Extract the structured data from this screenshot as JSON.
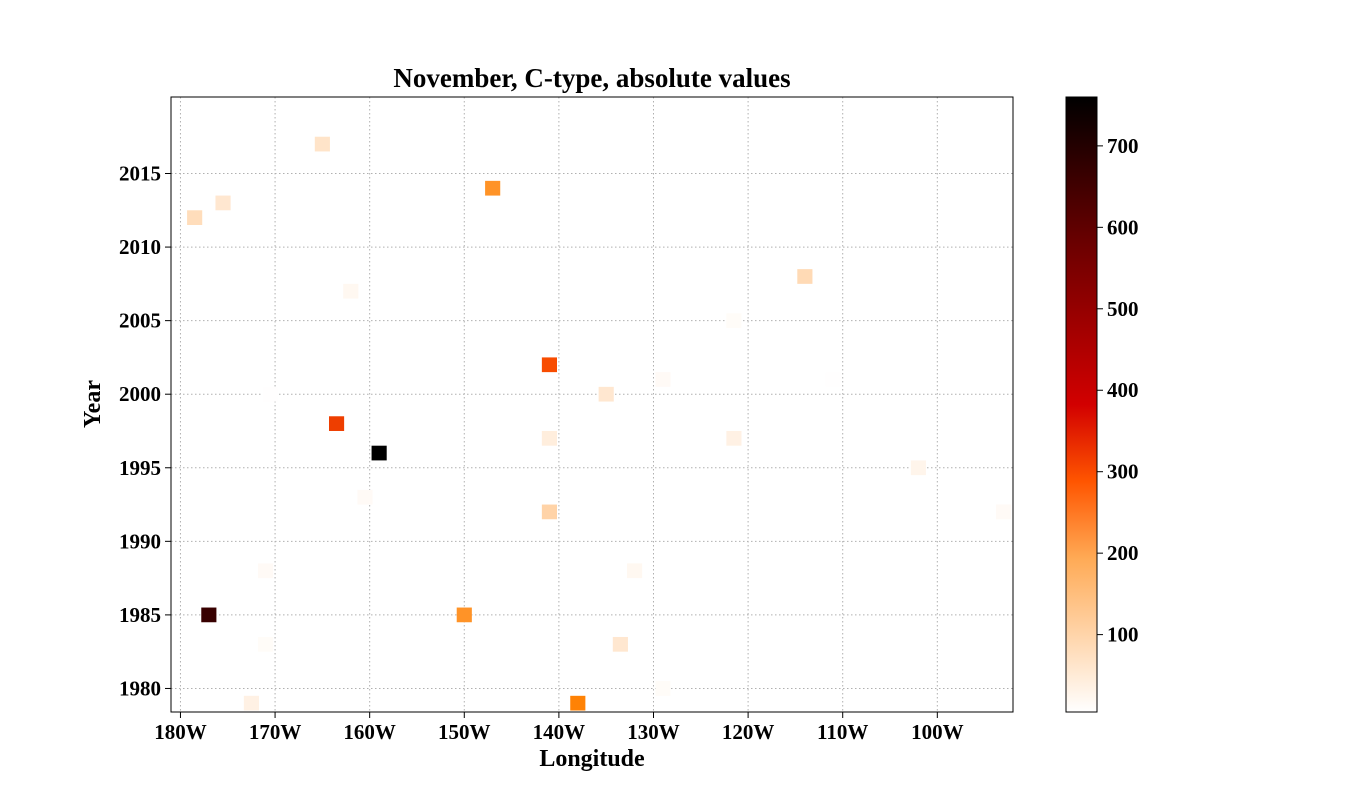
{
  "chart_data": {
    "type": "heatmap",
    "title": "November, C-type, absolute values",
    "xlabel": "Longitude",
    "ylabel": "Year",
    "xlim": [
      -181,
      -92
    ],
    "ylim": [
      1978.4,
      2020.2
    ],
    "xticks": [
      -180,
      -170,
      -160,
      -150,
      -140,
      -130,
      -120,
      -110,
      -100
    ],
    "xtick_labels": [
      "180W",
      "170W",
      "160W",
      "150W",
      "140W",
      "130W",
      "120W",
      "110W",
      "100W"
    ],
    "yticks": [
      1980,
      1985,
      1990,
      1995,
      2000,
      2005,
      2010,
      2015
    ],
    "ytick_labels": [
      "1980",
      "1985",
      "1990",
      "1995",
      "2000",
      "2005",
      "2010",
      "2015"
    ],
    "grid": true,
    "colormap": "gist_heat_r",
    "cell_width_deg": 1.6,
    "cell_height_years": 1,
    "colorbar": {
      "range": [
        5,
        760
      ],
      "ticks": [
        100,
        200,
        300,
        400,
        500,
        600,
        700
      ],
      "tick_labels": [
        "100",
        "200",
        "300",
        "400",
        "500",
        "600",
        "700"
      ]
    },
    "points": [
      {
        "lon": -165.0,
        "year": 2017,
        "value": 45
      },
      {
        "lon": -147.0,
        "year": 2014,
        "value": 165
      },
      {
        "lon": -175.5,
        "year": 2013,
        "value": 40
      },
      {
        "lon": -178.5,
        "year": 2012,
        "value": 55
      },
      {
        "lon": -114.0,
        "year": 2008,
        "value": 60
      },
      {
        "lon": -162.0,
        "year": 2007,
        "value": 15
      },
      {
        "lon": -121.5,
        "year": 2005,
        "value": 10
      },
      {
        "lon": -141.0,
        "year": 2002,
        "value": 270
      },
      {
        "lon": -129.0,
        "year": 2001,
        "value": 12
      },
      {
        "lon": -111.0,
        "year": 2001,
        "value": 6
      },
      {
        "lon": -135.0,
        "year": 2000,
        "value": 40
      },
      {
        "lon": -170.5,
        "year": 2000,
        "value": 6
      },
      {
        "lon": -163.5,
        "year": 1998,
        "value": 290
      },
      {
        "lon": -141.0,
        "year": 1997,
        "value": 30
      },
      {
        "lon": -121.5,
        "year": 1997,
        "value": 25
      },
      {
        "lon": -159.0,
        "year": 1996,
        "value": 760
      },
      {
        "lon": -102.0,
        "year": 1995,
        "value": 20
      },
      {
        "lon": -160.5,
        "year": 1993,
        "value": 12
      },
      {
        "lon": -141.0,
        "year": 1992,
        "value": 70
      },
      {
        "lon": -93.0,
        "year": 1992,
        "value": 12
      },
      {
        "lon": -171.0,
        "year": 1988,
        "value": 12
      },
      {
        "lon": -132.0,
        "year": 1988,
        "value": 15
      },
      {
        "lon": -177.0,
        "year": 1985,
        "value": 650
      },
      {
        "lon": -150.0,
        "year": 1985,
        "value": 165
      },
      {
        "lon": -171.0,
        "year": 1983,
        "value": 10
      },
      {
        "lon": -133.5,
        "year": 1983,
        "value": 40
      },
      {
        "lon": -129.0,
        "year": 1980,
        "value": 10
      },
      {
        "lon": -172.5,
        "year": 1979,
        "value": 25
      },
      {
        "lon": -138.0,
        "year": 1979,
        "value": 190
      }
    ]
  }
}
